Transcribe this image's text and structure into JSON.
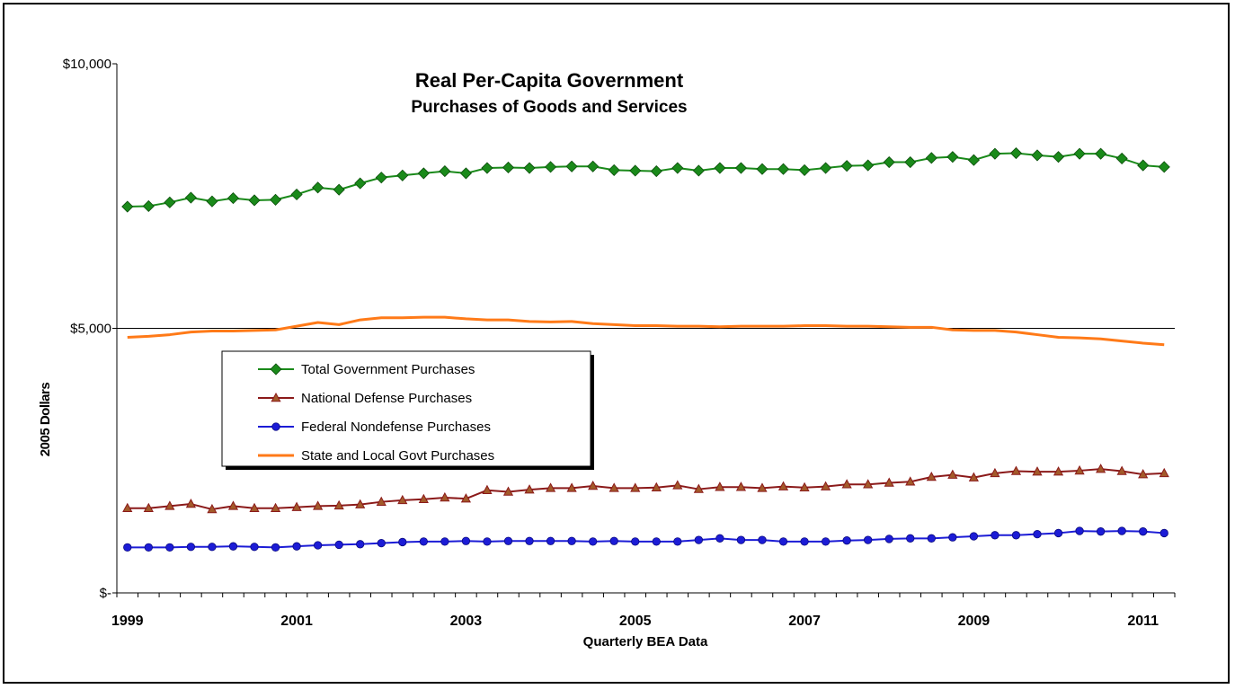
{
  "chart_data": {
    "type": "line",
    "title": "Real Per-Capita Government",
    "subtitle": "Purchases of Goods and Services",
    "xlabel": "Quarterly BEA Data",
    "ylabel": "2005 Dollars",
    "ylim": [
      0,
      10000
    ],
    "y_ticks": [
      0,
      5000,
      10000
    ],
    "y_tick_labels": [
      "$-",
      "$5,000",
      "$10,000"
    ],
    "x_tick_labels": [
      "1999",
      "2001",
      "2003",
      "2005",
      "2007",
      "2009",
      "2011"
    ],
    "x_tick_years": [
      1999,
      2001,
      2003,
      2005,
      2007,
      2009,
      2011
    ],
    "x_start_year": 1999,
    "gridlines": [
      5000
    ],
    "legend_position": "middle-left",
    "series": [
      {
        "name": "Total Government Purchases",
        "color": "#1a8a1a",
        "marker": "diamond",
        "values": [
          7300,
          7310,
          7380,
          7470,
          7400,
          7460,
          7420,
          7430,
          7530,
          7660,
          7620,
          7740,
          7850,
          7890,
          7930,
          7970,
          7930,
          8030,
          8040,
          8030,
          8050,
          8060,
          8060,
          7990,
          7980,
          7970,
          8030,
          7980,
          8030,
          8030,
          8010,
          8010,
          7990,
          8030,
          8070,
          8080,
          8140,
          8140,
          8220,
          8240,
          8180,
          8300,
          8310,
          8270,
          8240,
          8300,
          8300,
          8210,
          8080,
          8050
        ]
      },
      {
        "name": "National Defense Purchases",
        "color": "#8b1a1a",
        "marker": "triangle",
        "values": [
          1600,
          1600,
          1640,
          1680,
          1580,
          1640,
          1600,
          1600,
          1620,
          1640,
          1650,
          1670,
          1720,
          1750,
          1770,
          1800,
          1780,
          1940,
          1910,
          1950,
          1980,
          1980,
          2020,
          1980,
          1980,
          1990,
          2030,
          1960,
          2000,
          2000,
          1980,
          2010,
          1990,
          2010,
          2050,
          2050,
          2080,
          2100,
          2190,
          2230,
          2180,
          2260,
          2300,
          2290,
          2290,
          2310,
          2340,
          2300,
          2240,
          2260
        ]
      },
      {
        "name": "Federal Nondefense Purchases",
        "color": "#1c1cd6",
        "marker": "circle",
        "values": [
          860,
          860,
          860,
          870,
          870,
          880,
          870,
          860,
          880,
          900,
          910,
          920,
          940,
          960,
          970,
          970,
          980,
          970,
          980,
          980,
          980,
          980,
          970,
          980,
          970,
          970,
          970,
          1000,
          1030,
          1000,
          1000,
          970,
          970,
          970,
          990,
          1000,
          1020,
          1030,
          1030,
          1050,
          1070,
          1090,
          1090,
          1110,
          1130,
          1170,
          1160,
          1170,
          1160,
          1130
        ]
      },
      {
        "name": "State and Local Govt Purchases",
        "color": "#ff7a18",
        "marker": "none",
        "values": [
          4830,
          4850,
          4880,
          4930,
          4950,
          4950,
          4960,
          4970,
          5040,
          5110,
          5070,
          5160,
          5200,
          5200,
          5210,
          5210,
          5180,
          5160,
          5160,
          5130,
          5120,
          5130,
          5090,
          5070,
          5050,
          5050,
          5040,
          5040,
          5030,
          5040,
          5040,
          5040,
          5050,
          5050,
          5040,
          5040,
          5030,
          5020,
          5020,
          4970,
          4960,
          4960,
          4930,
          4880,
          4830,
          4820,
          4800,
          4760,
          4720,
          4690
        ]
      }
    ]
  }
}
